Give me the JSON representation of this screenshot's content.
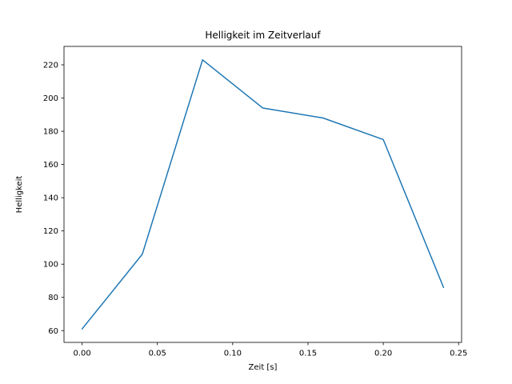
{
  "figure": {
    "background": "#ffffff"
  },
  "chart_data": {
    "type": "line",
    "title": "Helligkeit im Zeitverlauf",
    "xlabel": "Zeit [s]",
    "ylabel": "Helligkeit",
    "x": [
      0.0,
      0.04,
      0.08,
      0.12,
      0.16,
      0.2,
      0.24
    ],
    "y": [
      61,
      106,
      223,
      194,
      188,
      175,
      86
    ],
    "xlim": [
      -0.012,
      0.252
    ],
    "ylim": [
      52.9,
      231.1
    ],
    "xticks": [
      0.0,
      0.05,
      0.1,
      0.15,
      0.2,
      0.25
    ],
    "yticks": [
      60,
      80,
      100,
      120,
      140,
      160,
      180,
      200,
      220
    ],
    "x_tick_decimals": 2,
    "line_color": "#1f77b4",
    "axis_color": "#000000",
    "grid": false,
    "legend": null
  }
}
